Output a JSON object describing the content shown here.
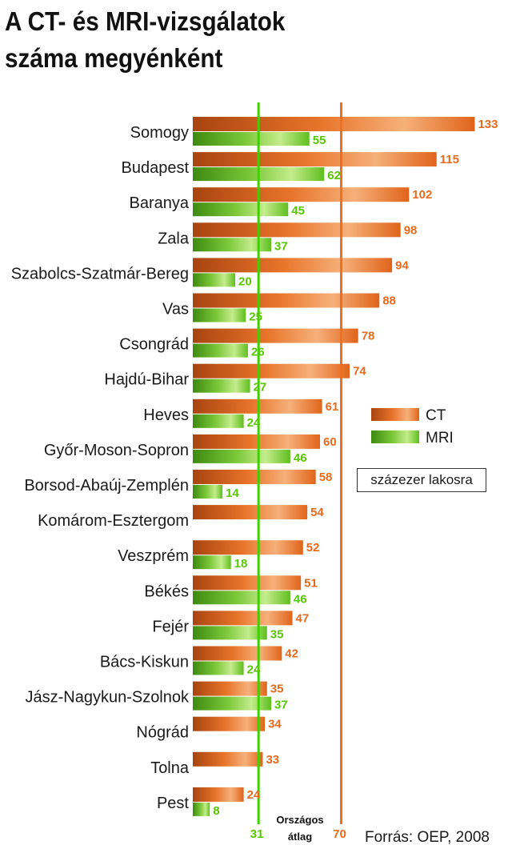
{
  "title_lines": [
    "A CT- és MRI-vizsgálatok",
    "száma megyénként"
  ],
  "unit_note": "százezer lakosra",
  "source": "Forrás: OEP, 2008",
  "colors": {
    "ct": "#e86a1c",
    "mri": "#57c800",
    "ct_line": "#f07020",
    "mri_line": "#3fd000"
  },
  "chart_data": {
    "type": "bar",
    "orientation": "horizontal",
    "categories": [
      "Somogy",
      "Budapest",
      "Baranya",
      "Zala",
      "Szabolcs-Szatmár-Bereg",
      "Vas",
      "Csongrád",
      "Hajdú-Bihar",
      "Heves",
      "Győr-Moson-Sopron",
      "Borsod-Abaúj-Zemplén",
      "Komárom-Esztergom",
      "Veszprém",
      "Békés",
      "Fejér",
      "Bács-Kiskun",
      "Jász-Nagykun-Szolnok",
      "Nógrád",
      "Tolna",
      "Pest"
    ],
    "series": [
      {
        "name": "CT",
        "values": [
          133,
          115,
          102,
          98,
          94,
          88,
          78,
          74,
          61,
          60,
          58,
          54,
          52,
          51,
          47,
          42,
          35,
          34,
          33,
          24
        ]
      },
      {
        "name": "MRI",
        "values": [
          55,
          62,
          45,
          37,
          20,
          25,
          26,
          27,
          24,
          46,
          14,
          null,
          18,
          46,
          35,
          24,
          37,
          null,
          null,
          8
        ]
      }
    ],
    "reference_lines": [
      {
        "series": "MRI",
        "value": 31,
        "label": "31"
      },
      {
        "series": "CT",
        "value": 70,
        "label": "70"
      }
    ],
    "reference_caption": [
      "Országos",
      "átlag"
    ],
    "legend": {
      "entries": [
        "CT",
        "MRI"
      ],
      "position": "right"
    },
    "grid": false
  }
}
